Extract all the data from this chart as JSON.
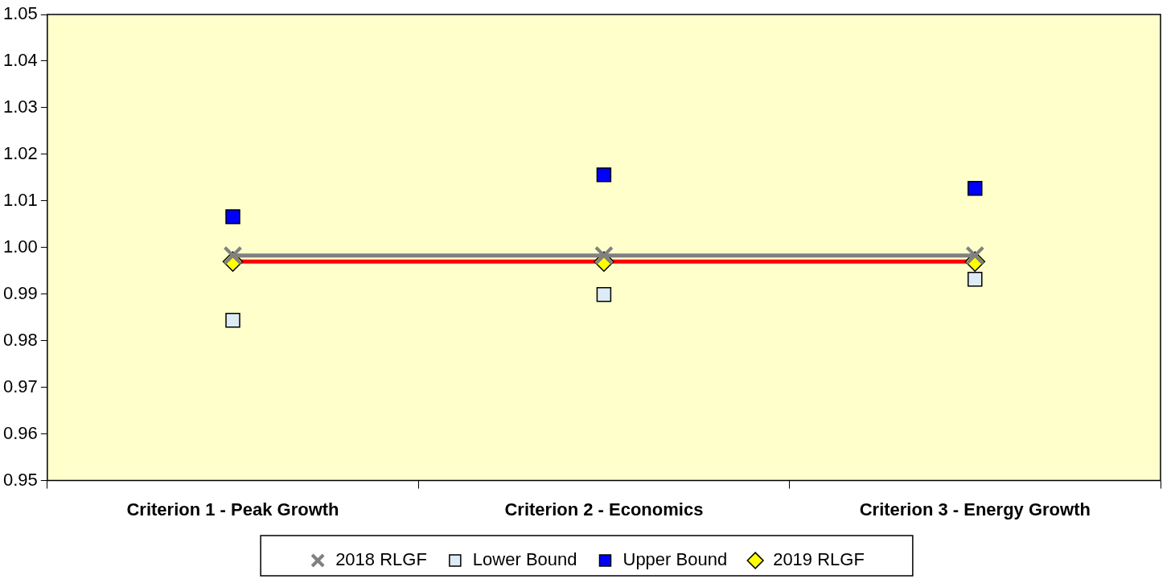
{
  "chart_data": {
    "type": "line",
    "categories": [
      "Criterion 1 - Peak Growth",
      "Criterion 2 - Economics",
      "Criterion 3 - Energy Growth"
    ],
    "series": [
      {
        "name": "2018 RLGF",
        "color": "#808080",
        "marker": "cross",
        "values": [
          0.9983,
          0.9983,
          0.9983
        ]
      },
      {
        "name": "Lower Bound",
        "type": "scatter",
        "color": "#dcebf5",
        "marker": "square",
        "values": [
          0.9844,
          0.9899,
          0.9932
        ]
      },
      {
        "name": "Upper Bound",
        "type": "scatter",
        "color": "#0000ff",
        "marker": "square",
        "values": [
          1.0066,
          1.0156,
          1.0127
        ]
      },
      {
        "name": "2019 RLGF",
        "color": "#ff0000",
        "colors": [
          "#ffff00",
          "#ffff00",
          "#ffff00"
        ],
        "marker": "diamond",
        "values": [
          0.997,
          0.997,
          0.997
        ]
      }
    ],
    "ylim": [
      0.95,
      1.05
    ],
    "yticks": [
      0.95,
      0.96,
      0.97,
      0.98,
      0.99,
      {
        "value": 1,
        "label": "1.00"
      },
      1.01,
      1.02,
      1.03,
      1.04,
      1.05
    ],
    "grid": false,
    "legend": "bottom"
  }
}
